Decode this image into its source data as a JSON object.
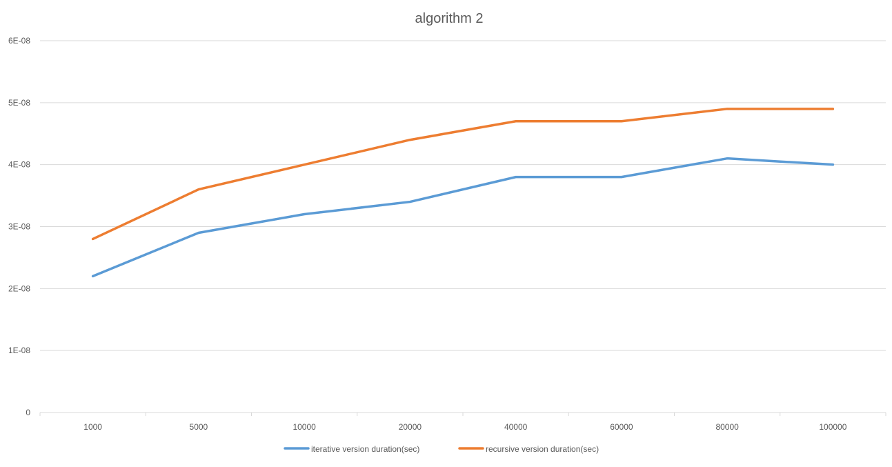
{
  "chart_data": {
    "type": "line",
    "title": "algorithm 2",
    "xlabel": "",
    "ylabel": "",
    "categories": [
      "1000",
      "5000",
      "10000",
      "20000",
      "40000",
      "60000",
      "80000",
      "100000"
    ],
    "ylim": [
      0,
      6e-08
    ],
    "yticks": [
      0,
      1e-08,
      2e-08,
      3e-08,
      4e-08,
      5e-08,
      6e-08
    ],
    "ytick_labels": [
      "0",
      "1E-08",
      "2E-08",
      "3E-08",
      "4E-08",
      "5E-08",
      "6E-08"
    ],
    "grid": true,
    "legend_position": "bottom",
    "series": [
      {
        "name": "iterative version duration(sec)",
        "color": "#5b9bd5",
        "values": [
          2.2e-08,
          2.9e-08,
          3.2e-08,
          3.4e-08,
          3.8e-08,
          3.8e-08,
          4.1e-08,
          4e-08
        ]
      },
      {
        "name": "recursive version duration(sec)",
        "color": "#ed7d31",
        "values": [
          2.8e-08,
          3.6e-08,
          4e-08,
          4.4e-08,
          4.7e-08,
          4.7e-08,
          4.9e-08,
          4.9e-08
        ]
      }
    ]
  }
}
